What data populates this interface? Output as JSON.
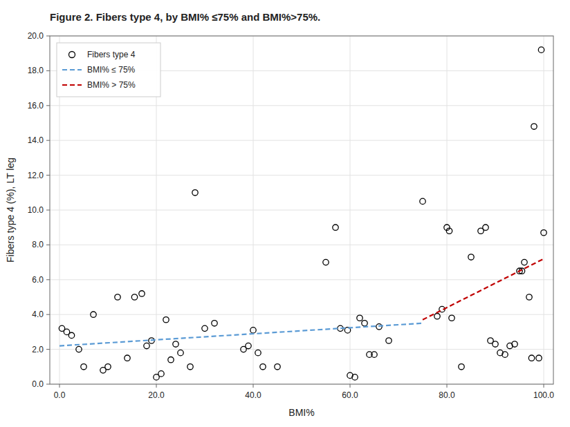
{
  "chart_data": {
    "type": "scatter",
    "title": "Figure 2. Fibers type 4, by BMI% ≤75% and BMI%>75%.",
    "xlabel": "BMI%",
    "ylabel": "Fibers type 4 (%), LT leg",
    "xlim": [
      -2.0,
      102.0
    ],
    "ylim": [
      0.0,
      20.0
    ],
    "xticks": [
      {
        "value": 0.0,
        "label": "0.0"
      },
      {
        "value": 20.0,
        "label": "20.0"
      },
      {
        "value": 40.0,
        "label": "40.0"
      },
      {
        "value": 60.0,
        "label": "60.0"
      },
      {
        "value": 80.0,
        "label": "80.0"
      },
      {
        "value": 100.0,
        "label": "100.0"
      }
    ],
    "yticks": [
      {
        "value": 0.0,
        "label": "0.0"
      },
      {
        "value": 2.0,
        "label": "2.0"
      },
      {
        "value": 4.0,
        "label": "4.0"
      },
      {
        "value": 6.0,
        "label": "6.0"
      },
      {
        "value": 8.0,
        "label": "8.0"
      },
      {
        "value": 10.0,
        "label": "10.0"
      },
      {
        "value": 12.0,
        "label": "12.0"
      },
      {
        "value": 14.0,
        "label": "14.0"
      },
      {
        "value": 16.0,
        "label": "16.0"
      },
      {
        "value": 18.0,
        "label": "18.0"
      },
      {
        "value": 20.0,
        "label": "20.0"
      }
    ],
    "grid": true,
    "legend": "upper left",
    "series": [
      {
        "name": "Fibers type 4",
        "type": "scatter",
        "marker": "circle",
        "color": "black",
        "x": [
          0.5,
          1.5,
          2.5,
          4.0,
          5.0,
          7.0,
          9.0,
          10.0,
          12.0,
          14.0,
          15.5,
          17.0,
          18.0,
          19.0,
          20.0,
          21.0,
          22.0,
          23.0,
          24.0,
          25.0,
          27.0,
          28.0,
          30.0,
          32.0,
          38.0,
          39.0,
          40.0,
          41.0,
          42.0,
          45.0,
          55.0,
          57.0,
          58.0,
          59.5,
          60.0,
          61.0,
          62.0,
          63.0,
          64.0,
          65.0,
          66.0,
          68.0,
          75.0,
          78.0,
          79.0,
          80.0,
          80.5,
          81.0,
          83.0,
          85.0,
          87.0,
          88.0,
          89.0,
          90.0,
          91.0,
          92.0,
          93.0,
          94.0,
          95.0,
          95.5,
          96.0,
          97.0,
          97.5,
          98.0,
          99.0,
          99.5,
          100.0
        ],
        "values": [
          3.2,
          3.0,
          2.8,
          2.0,
          1.0,
          4.0,
          0.8,
          1.0,
          5.0,
          1.5,
          5.0,
          5.2,
          2.2,
          2.5,
          0.4,
          0.6,
          3.7,
          1.4,
          2.3,
          1.8,
          1.0,
          11.0,
          3.2,
          3.5,
          2.0,
          2.2,
          3.1,
          1.8,
          1.0,
          1.0,
          7.0,
          9.0,
          3.2,
          3.1,
          0.5,
          0.4,
          3.8,
          3.5,
          1.7,
          1.7,
          3.3,
          2.5,
          10.5,
          3.9,
          4.3,
          9.0,
          8.8,
          3.8,
          1.0,
          7.3,
          8.8,
          9.0,
          2.5,
          2.3,
          1.8,
          1.7,
          2.2,
          2.3,
          6.5,
          6.5,
          7.0,
          5.0,
          1.5,
          14.8,
          1.5,
          19.2,
          8.7
        ]
      },
      {
        "name": "BMI% ≤ 75%",
        "type": "line",
        "line_style": "dashed",
        "color": "#5b9bd5",
        "x": [
          0.0,
          75.0
        ],
        "values": [
          2.2,
          3.5
        ]
      },
      {
        "name": "BMI% > 75%",
        "type": "line",
        "line_style": "dashed",
        "color": "#c00000",
        "x": [
          75.0,
          100.0
        ],
        "values": [
          3.7,
          7.2
        ]
      }
    ]
  }
}
